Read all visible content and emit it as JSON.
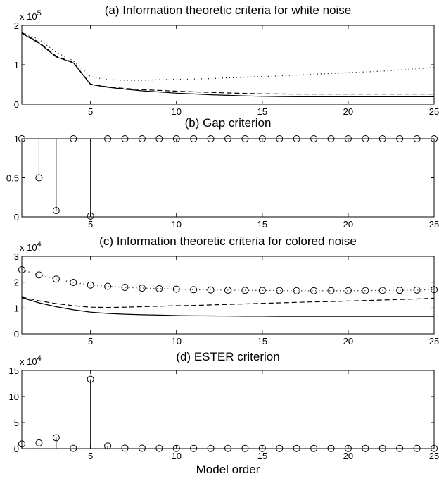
{
  "chart_data": [
    {
      "type": "line",
      "title": "(a) Information theoretic criteria for white noise",
      "xlabel": "",
      "ylabel": "",
      "y_scale_label": "x 10",
      "y_scale_exp": "5",
      "xlim": [
        1,
        25
      ],
      "ylim": [
        0,
        200000
      ],
      "xticks": [
        5,
        10,
        15,
        20,
        25
      ],
      "yticks": [
        0,
        100000,
        200000
      ],
      "ytick_labels": [
        "0",
        "1",
        "2"
      ],
      "x": [
        1,
        2,
        3,
        4,
        5,
        6,
        7,
        8,
        9,
        10,
        11,
        12,
        13,
        14,
        15,
        16,
        17,
        18,
        19,
        20,
        21,
        22,
        23,
        24,
        25
      ],
      "series": [
        {
          "style": "solid",
          "values": [
            180000,
            155000,
            120000,
            105000,
            50000,
            43000,
            38000,
            34000,
            31000,
            28000,
            26000,
            24000,
            22500,
            21000,
            20000,
            19500,
            19000,
            19000,
            19000,
            19000,
            19000,
            19000,
            19000,
            19000,
            19000
          ]
        },
        {
          "style": "dashed",
          "values": [
            182000,
            157000,
            122000,
            106000,
            51000,
            44000,
            40000,
            37000,
            35000,
            33000,
            31500,
            30000,
            28500,
            27500,
            26500,
            26000,
            25500,
            25500,
            25500,
            25500,
            25500,
            25500,
            25500,
            25500,
            25500
          ]
        },
        {
          "style": "dotted",
          "values": [
            182000,
            165000,
            132000,
            110000,
            70000,
            62000,
            61000,
            61000,
            62000,
            63000,
            64000,
            65000,
            67000,
            68500,
            70000,
            72000,
            74000,
            76000,
            78000,
            80000,
            82000,
            84000,
            87000,
            90000,
            93000
          ]
        }
      ]
    },
    {
      "type": "stem",
      "title": "(b) Gap criterion",
      "xlim": [
        1,
        25
      ],
      "ylim": [
        0,
        1
      ],
      "xticks": [
        5,
        10,
        15,
        20,
        25
      ],
      "yticks": [
        0,
        0.5,
        1
      ],
      "ytick_labels": [
        "0",
        "0.5",
        "1"
      ],
      "x": [
        1,
        2,
        3,
        4,
        5,
        6,
        7,
        8,
        9,
        10,
        11,
        12,
        13,
        14,
        15,
        16,
        17,
        18,
        19,
        20,
        21,
        22,
        23,
        24,
        25
      ],
      "values": [
        1,
        0.5,
        0.08,
        1,
        0.01,
        1,
        1,
        1,
        1,
        1,
        1,
        1,
        1,
        1,
        1,
        1,
        1,
        1,
        1,
        1,
        1,
        1,
        1,
        1,
        1
      ],
      "baseline": 1
    },
    {
      "type": "line",
      "title": "(c) Information theoretic criteria for colored noise",
      "y_scale_label": "x 10",
      "y_scale_exp": "4",
      "xlim": [
        1,
        25
      ],
      "ylim": [
        0,
        30000
      ],
      "xticks": [
        5,
        10,
        15,
        20,
        25
      ],
      "yticks": [
        0,
        10000,
        20000,
        30000
      ],
      "ytick_labels": [
        "0",
        "1",
        "2",
        "3"
      ],
      "x": [
        1,
        2,
        3,
        4,
        5,
        6,
        7,
        8,
        9,
        10,
        11,
        12,
        13,
        14,
        15,
        16,
        17,
        18,
        19,
        20,
        21,
        22,
        23,
        24,
        25
      ],
      "series": [
        {
          "style": "solid",
          "values": [
            14000,
            12000,
            10500,
            9300,
            8400,
            7900,
            7600,
            7400,
            7250,
            7100,
            7000,
            6950,
            6900,
            6850,
            6850,
            6800,
            6800,
            6800,
            6800,
            6800,
            6800,
            6800,
            6800,
            6800,
            6800
          ]
        },
        {
          "style": "dashed",
          "values": [
            14200,
            12800,
            11700,
            10900,
            10300,
            10200,
            10300,
            10500,
            10700,
            10900,
            11000,
            11200,
            11400,
            11600,
            11800,
            12000,
            12200,
            12400,
            12500,
            12700,
            12900,
            13100,
            13300,
            13500,
            13800
          ]
        },
        {
          "style": "dotted-circle",
          "values": [
            24800,
            22800,
            21200,
            19900,
            18900,
            18400,
            18000,
            17700,
            17500,
            17300,
            17100,
            17000,
            16900,
            16850,
            16800,
            16750,
            16700,
            16700,
            16700,
            16700,
            16750,
            16800,
            16850,
            16950,
            17100
          ]
        }
      ]
    },
    {
      "type": "stem",
      "title": "(d) ESTER criterion",
      "xlabel": "Model order",
      "y_scale_label": "x 10",
      "y_scale_exp": "4",
      "xlim": [
        1,
        25
      ],
      "ylim": [
        0,
        150000
      ],
      "xticks": [
        5,
        10,
        15,
        20,
        25
      ],
      "yticks": [
        0,
        50000,
        100000,
        150000
      ],
      "ytick_labels": [
        "0",
        "5",
        "10",
        "15"
      ],
      "x": [
        1,
        2,
        3,
        4,
        5,
        6,
        7,
        8,
        9,
        10,
        11,
        12,
        13,
        14,
        15,
        16,
        17,
        18,
        19,
        20,
        21,
        22,
        23,
        24,
        25
      ],
      "values": [
        9000,
        11000,
        21000,
        500,
        133000,
        5000,
        800,
        600,
        500,
        400,
        300,
        300,
        300,
        300,
        300,
        300,
        300,
        300,
        300,
        300,
        300,
        300,
        300,
        300,
        300
      ],
      "baseline": 0
    }
  ]
}
